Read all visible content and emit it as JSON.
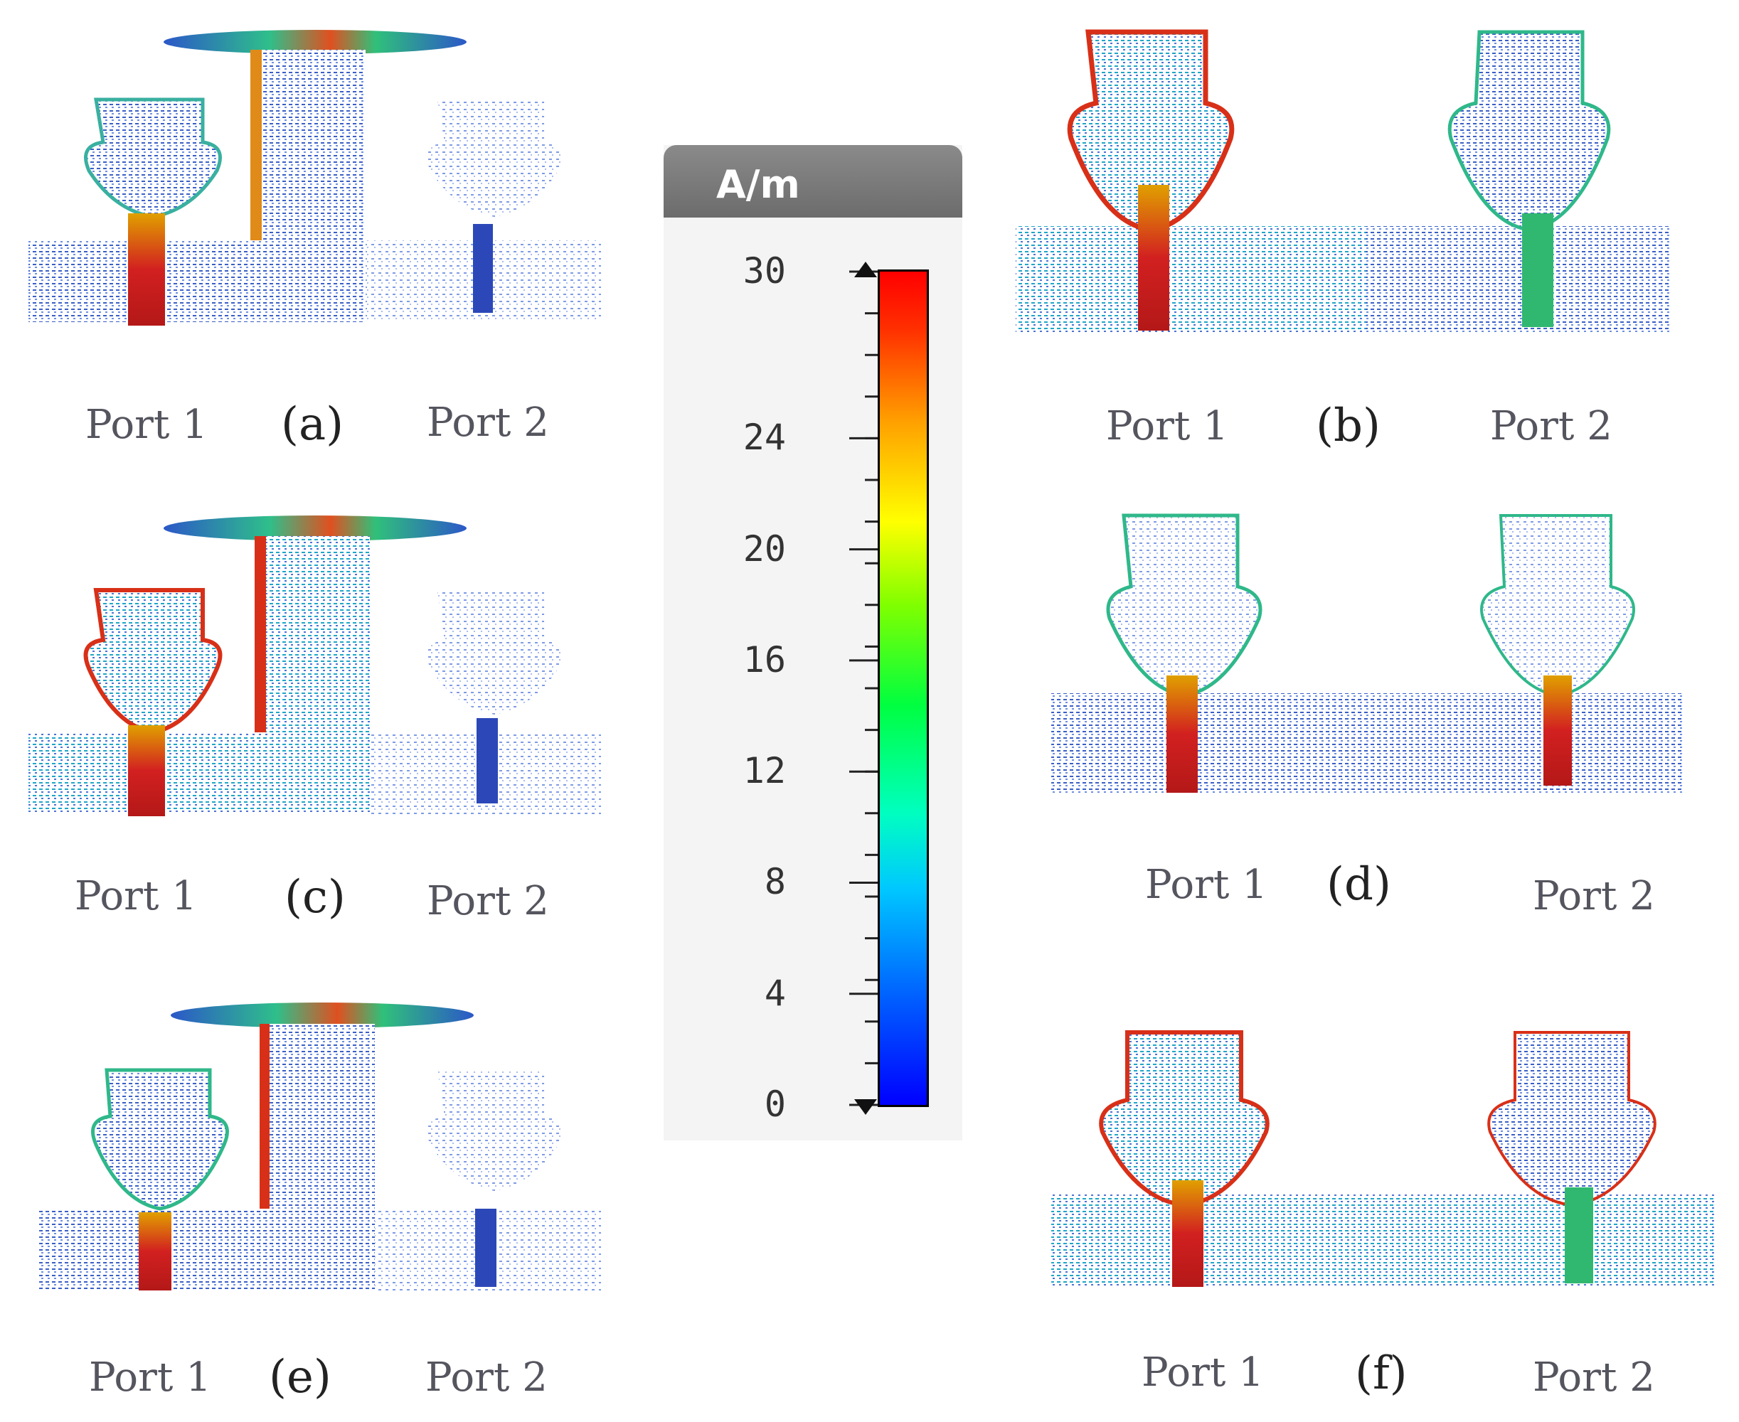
{
  "legend": {
    "unit": "A/m",
    "ticks": [
      "30",
      "24",
      "20",
      "16",
      "12",
      "8",
      "4",
      "0"
    ],
    "tick_values": [
      30,
      24,
      20,
      16,
      12,
      8,
      4,
      0
    ],
    "range": [
      0,
      30
    ],
    "colors": [
      "#0000ff",
      "#00c8ff",
      "#00ff40",
      "#ffff00",
      "#ff3000"
    ]
  },
  "panels": [
    {
      "id": "a",
      "tag": "(a)",
      "port1": "Port 1",
      "port2": "Port 2"
    },
    {
      "id": "b",
      "tag": "(b)",
      "port1": "Port 1",
      "port2": "Port 2"
    },
    {
      "id": "c",
      "tag": "(c)",
      "port1": "Port 1",
      "port2": "Port 2"
    },
    {
      "id": "d",
      "tag": "(d)",
      "port1": "Port 1",
      "port2": "Port 2"
    },
    {
      "id": "e",
      "tag": "(e)",
      "port1": "Port 1",
      "port2": "Port 2"
    },
    {
      "id": "f",
      "tag": "(f)",
      "port1": "Port 1",
      "port2": "Port 2"
    }
  ]
}
